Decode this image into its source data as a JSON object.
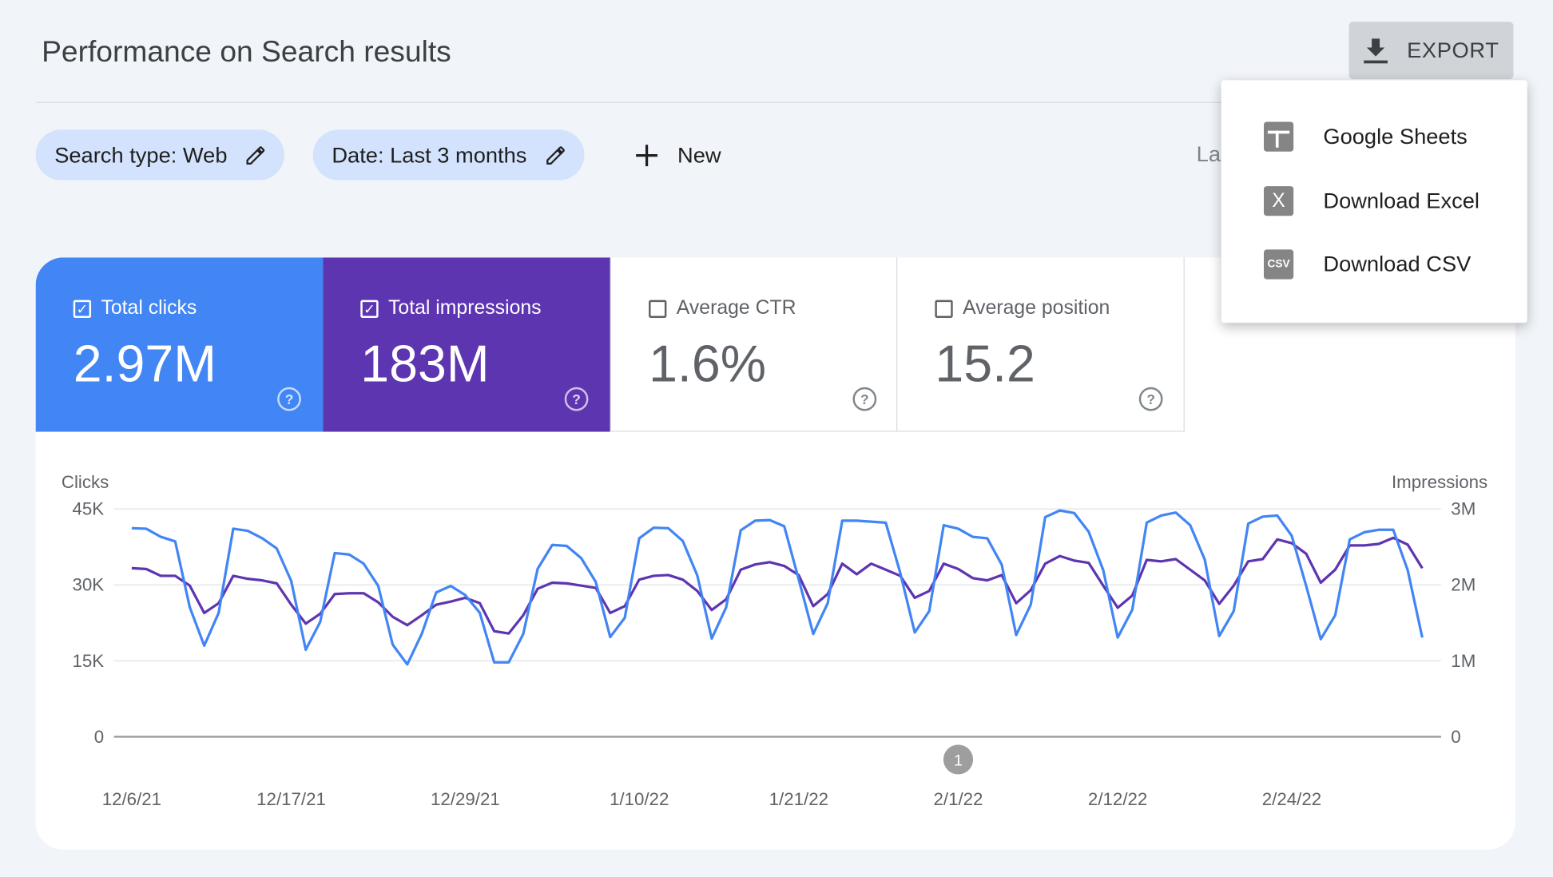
{
  "header": {
    "title": "Performance on Search results",
    "export_label": "EXPORT",
    "export_icon": "download-icon"
  },
  "filters": [
    {
      "label": "Search type: Web",
      "icon": "pencil-icon"
    },
    {
      "label": "Date: Last 3 months",
      "icon": "pencil-icon"
    }
  ],
  "new_filter": {
    "label": "New",
    "icon": "plus-icon"
  },
  "last_updated_partial": "La",
  "export_menu": [
    {
      "label": "Google Sheets",
      "icon": "google-sheets-icon",
      "glyph": ""
    },
    {
      "label": "Download Excel",
      "icon": "excel-icon",
      "glyph": "X"
    },
    {
      "label": "Download CSV",
      "icon": "csv-icon",
      "glyph": "CSV"
    }
  ],
  "metrics": [
    {
      "label": "Total clicks",
      "value": "2.97M",
      "checked": true,
      "color": "#4285f4"
    },
    {
      "label": "Total impressions",
      "value": "183M",
      "checked": true,
      "color": "#5e35b1"
    },
    {
      "label": "Average CTR",
      "value": "1.6%",
      "checked": false
    },
    {
      "label": "Average position",
      "value": "15.2",
      "checked": false
    }
  ],
  "chart_data": {
    "type": "line",
    "start_date": "12/6/21",
    "x_tick_labels": [
      "12/6/21",
      "12/17/21",
      "12/29/21",
      "1/10/22",
      "1/21/22",
      "2/1/22",
      "2/12/22",
      "2/24/22"
    ],
    "left_axis": {
      "label": "Clicks",
      "ticks": [
        "0",
        "15K",
        "30K",
        "45K"
      ],
      "range": [
        0,
        45000
      ]
    },
    "right_axis": {
      "label": "Impressions",
      "ticks": [
        "0",
        "1M",
        "2M",
        "3M"
      ],
      "range": [
        0,
        3000000
      ]
    },
    "grid": true,
    "annotation": {
      "label": "1",
      "date": "2/1/22"
    },
    "series": [
      {
        "name": "Clicks",
        "axis": "left",
        "color": "#4285f4",
        "values": [
          41.2,
          41.1,
          39.5,
          38.6,
          25.6,
          18.0,
          24.5,
          41.1,
          40.7,
          39.2,
          37.2,
          30.8,
          17.2,
          22.7,
          36.3,
          36.0,
          34.2,
          29.8,
          18.2,
          14.3,
          20.3,
          28.5,
          29.8,
          28.0,
          24.5,
          14.7,
          14.7,
          20.3,
          33.2,
          37.9,
          37.7,
          35.3,
          30.6,
          19.7,
          23.5,
          39.2,
          41.3,
          41.2,
          38.7,
          31.9,
          19.4,
          25.6,
          40.8,
          42.7,
          42.8,
          41.6,
          31.1,
          20.3,
          26.4,
          42.7,
          42.7,
          42.5,
          42.3,
          32.4,
          20.6,
          24.8,
          41.8,
          41.1,
          39.5,
          39.2,
          34.0,
          20.1,
          26.1,
          43.4,
          44.7,
          44.2,
          40.5,
          32.9,
          19.6,
          25.1,
          42.3,
          43.7,
          44.3,
          41.8,
          35.0,
          19.9,
          24.8,
          42.1,
          43.5,
          43.7,
          39.7,
          29.8,
          19.3,
          24.0,
          39.0,
          40.4,
          40.9,
          40.9,
          32.9,
          19.6
        ],
        "unit": "K"
      },
      {
        "name": "Impressions",
        "axis": "right",
        "color": "#5e35b1",
        "values": [
          2.22,
          2.21,
          2.12,
          2.12,
          1.99,
          1.63,
          1.76,
          2.12,
          2.08,
          2.06,
          2.02,
          1.74,
          1.49,
          1.62,
          1.88,
          1.89,
          1.89,
          1.77,
          1.58,
          1.47,
          1.6,
          1.74,
          1.78,
          1.83,
          1.76,
          1.39,
          1.36,
          1.6,
          1.95,
          2.03,
          2.02,
          1.99,
          1.96,
          1.63,
          1.72,
          2.07,
          2.12,
          2.13,
          2.07,
          1.92,
          1.67,
          1.81,
          2.2,
          2.27,
          2.3,
          2.25,
          2.13,
          1.72,
          1.88,
          2.28,
          2.14,
          2.28,
          2.2,
          2.12,
          1.83,
          1.92,
          2.28,
          2.21,
          2.09,
          2.06,
          2.13,
          1.76,
          1.93,
          2.28,
          2.38,
          2.32,
          2.29,
          1.99,
          1.7,
          1.86,
          2.33,
          2.31,
          2.34,
          2.2,
          2.06,
          1.75,
          1.99,
          2.31,
          2.34,
          2.6,
          2.55,
          2.41,
          2.03,
          2.2,
          2.52,
          2.52,
          2.54,
          2.62,
          2.53,
          2.22
        ],
        "unit": "M"
      }
    ]
  }
}
